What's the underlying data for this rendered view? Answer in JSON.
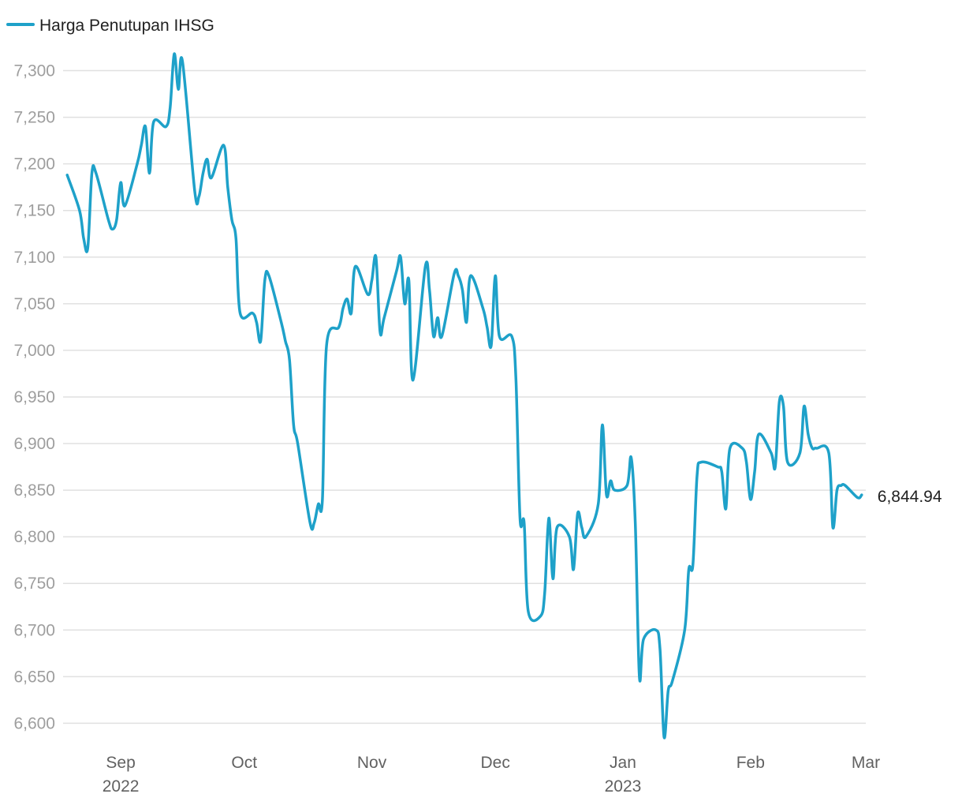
{
  "chart_data": {
    "type": "line",
    "series": [
      {
        "name": "Harga Penutupan IHSG",
        "color": "#1ea1c9",
        "points": [
          [
            "2022-08-19",
            7188
          ],
          [
            "2022-08-22",
            7150
          ],
          [
            "2022-08-23",
            7120
          ],
          [
            "2022-08-24",
            7110
          ],
          [
            "2022-08-25",
            7190
          ],
          [
            "2022-08-26",
            7190
          ],
          [
            "2022-08-29",
            7140
          ],
          [
            "2022-08-30",
            7130
          ],
          [
            "2022-08-31",
            7140
          ],
          [
            "2022-09-01",
            7180
          ],
          [
            "2022-09-02",
            7155
          ],
          [
            "2022-09-05",
            7200
          ],
          [
            "2022-09-06",
            7220
          ],
          [
            "2022-09-07",
            7240
          ],
          [
            "2022-09-08",
            7190
          ],
          [
            "2022-09-09",
            7245
          ],
          [
            "2022-09-12",
            7240
          ],
          [
            "2022-09-13",
            7260
          ],
          [
            "2022-09-14",
            7318
          ],
          [
            "2022-09-15",
            7280
          ],
          [
            "2022-09-16",
            7310
          ],
          [
            "2022-09-19",
            7170
          ],
          [
            "2022-09-20",
            7165
          ],
          [
            "2022-09-21",
            7190
          ],
          [
            "2022-09-22",
            7205
          ],
          [
            "2022-09-23",
            7185
          ],
          [
            "2022-09-26",
            7220
          ],
          [
            "2022-09-27",
            7175
          ],
          [
            "2022-09-28",
            7140
          ],
          [
            "2022-09-29",
            7120
          ],
          [
            "2022-09-30",
            7040
          ],
          [
            "2022-10-03",
            7040
          ],
          [
            "2022-10-04",
            7030
          ],
          [
            "2022-10-05",
            7010
          ],
          [
            "2022-10-06",
            7075
          ],
          [
            "2022-10-07",
            7080
          ],
          [
            "2022-10-10",
            7030
          ],
          [
            "2022-10-11",
            7010
          ],
          [
            "2022-10-12",
            6990
          ],
          [
            "2022-10-13",
            6920
          ],
          [
            "2022-10-14",
            6900
          ],
          [
            "2022-10-17",
            6815
          ],
          [
            "2022-10-18",
            6815
          ],
          [
            "2022-10-19",
            6835
          ],
          [
            "2022-10-20",
            6840
          ],
          [
            "2022-10-21",
            7005
          ],
          [
            "2022-10-24",
            7025
          ],
          [
            "2022-10-25",
            7045
          ],
          [
            "2022-10-26",
            7055
          ],
          [
            "2022-10-27",
            7040
          ],
          [
            "2022-10-28",
            7090
          ],
          [
            "2022-10-31",
            7060
          ],
          [
            "2022-11-01",
            7075
          ],
          [
            "2022-11-02",
            7100
          ],
          [
            "2022-11-03",
            7020
          ],
          [
            "2022-11-04",
            7035
          ],
          [
            "2022-11-07",
            7085
          ],
          [
            "2022-11-08",
            7100
          ],
          [
            "2022-11-09",
            7050
          ],
          [
            "2022-11-10",
            7075
          ],
          [
            "2022-11-11",
            6968
          ],
          [
            "2022-11-14",
            7090
          ],
          [
            "2022-11-15",
            7065
          ],
          [
            "2022-11-16",
            7015
          ],
          [
            "2022-11-17",
            7035
          ],
          [
            "2022-11-18",
            7015
          ],
          [
            "2022-11-21",
            7082
          ],
          [
            "2022-11-22",
            7080
          ],
          [
            "2022-11-23",
            7065
          ],
          [
            "2022-11-24",
            7030
          ],
          [
            "2022-11-25",
            7080
          ],
          [
            "2022-11-28",
            7045
          ],
          [
            "2022-11-29",
            7025
          ],
          [
            "2022-11-30",
            7005
          ],
          [
            "2022-12-01",
            7080
          ],
          [
            "2022-12-02",
            7015
          ],
          [
            "2022-12-05",
            7015
          ],
          [
            "2022-12-06",
            6970
          ],
          [
            "2022-12-07",
            6820
          ],
          [
            "2022-12-08",
            6815
          ],
          [
            "2022-12-09",
            6720
          ],
          [
            "2022-12-12",
            6715
          ],
          [
            "2022-12-13",
            6740
          ],
          [
            "2022-12-14",
            6820
          ],
          [
            "2022-12-15",
            6755
          ],
          [
            "2022-12-16",
            6810
          ],
          [
            "2022-12-19",
            6800
          ],
          [
            "2022-12-20",
            6765
          ],
          [
            "2022-12-21",
            6825
          ],
          [
            "2022-12-22",
            6810
          ],
          [
            "2022-12-23",
            6800
          ],
          [
            "2022-12-26",
            6835
          ],
          [
            "2022-12-27",
            6920
          ],
          [
            "2022-12-28",
            6845
          ],
          [
            "2022-12-29",
            6860
          ],
          [
            "2022-12-30",
            6850
          ],
          [
            "2023-01-02",
            6855
          ],
          [
            "2023-01-03",
            6885
          ],
          [
            "2023-01-04",
            6815
          ],
          [
            "2023-01-05",
            6650
          ],
          [
            "2023-01-06",
            6690
          ],
          [
            "2023-01-09",
            6700
          ],
          [
            "2023-01-10",
            6680
          ],
          [
            "2023-01-11",
            6585
          ],
          [
            "2023-01-12",
            6635
          ],
          [
            "2023-01-13",
            6645
          ],
          [
            "2023-01-16",
            6700
          ],
          [
            "2023-01-17",
            6765
          ],
          [
            "2023-01-18",
            6770
          ],
          [
            "2023-01-19",
            6865
          ],
          [
            "2023-01-20",
            6880
          ],
          [
            "2023-01-24",
            6875
          ],
          [
            "2023-01-25",
            6870
          ],
          [
            "2023-01-26",
            6830
          ],
          [
            "2023-01-27",
            6895
          ],
          [
            "2023-01-30",
            6895
          ],
          [
            "2023-01-31",
            6880
          ],
          [
            "2023-02-01",
            6840
          ],
          [
            "2023-02-02",
            6870
          ],
          [
            "2023-02-03",
            6910
          ],
          [
            "2023-02-06",
            6890
          ],
          [
            "2023-02-07",
            6875
          ],
          [
            "2023-02-08",
            6945
          ],
          [
            "2023-02-09",
            6940
          ],
          [
            "2023-02-10",
            6880
          ],
          [
            "2023-02-13",
            6890
          ],
          [
            "2023-02-14",
            6940
          ],
          [
            "2023-02-15",
            6910
          ],
          [
            "2023-02-16",
            6895
          ],
          [
            "2023-02-17",
            6895
          ],
          [
            "2023-02-20",
            6890
          ],
          [
            "2023-02-21",
            6810
          ],
          [
            "2023-02-22",
            6850
          ],
          [
            "2023-02-23",
            6855
          ],
          [
            "2023-02-24",
            6855
          ],
          [
            "2023-02-27",
            6842
          ],
          [
            "2023-02-28",
            6844.94
          ]
        ]
      }
    ],
    "last_value_label": "6,844.94",
    "x_ticks": [
      {
        "date": "2022-09-01",
        "label": "Sep",
        "sublabel": "2022"
      },
      {
        "date": "2022-10-01",
        "label": "Oct",
        "sublabel": ""
      },
      {
        "date": "2022-11-01",
        "label": "Nov",
        "sublabel": ""
      },
      {
        "date": "2022-12-01",
        "label": "Dec",
        "sublabel": ""
      },
      {
        "date": "2023-01-01",
        "label": "Jan",
        "sublabel": "2023"
      },
      {
        "date": "2023-02-01",
        "label": "Feb",
        "sublabel": ""
      },
      {
        "date": "2023-03-01",
        "label": "Mar",
        "sublabel": ""
      }
    ],
    "y_ticks": [
      {
        "value": 6600,
        "label": "6,600"
      },
      {
        "value": 6650,
        "label": "6,650"
      },
      {
        "value": 6700,
        "label": "6,700"
      },
      {
        "value": 6750,
        "label": "6,750"
      },
      {
        "value": 6800,
        "label": "6,800"
      },
      {
        "value": 6850,
        "label": "6,850"
      },
      {
        "value": 6900,
        "label": "6,900"
      },
      {
        "value": 6950,
        "label": "6,950"
      },
      {
        "value": 7000,
        "label": "7,000"
      },
      {
        "value": 7050,
        "label": "7,050"
      },
      {
        "value": 7100,
        "label": "7,100"
      },
      {
        "value": 7150,
        "label": "7,150"
      },
      {
        "value": 7200,
        "label": "7,200"
      },
      {
        "value": 7250,
        "label": "7,250"
      },
      {
        "value": 7300,
        "label": "7,300"
      }
    ],
    "ylim": [
      6580,
      7325
    ],
    "xlim": [
      "2022-08-18",
      "2023-03-01"
    ],
    "grid": true,
    "legend_position": "top-left"
  }
}
